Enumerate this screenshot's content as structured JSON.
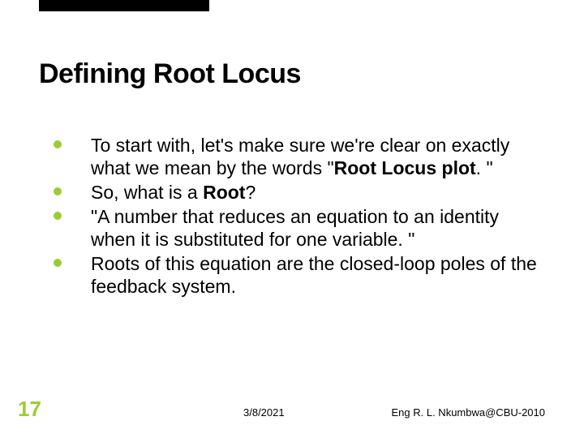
{
  "accent": {
    "bar_color": "#000000",
    "bullet_color": "#9acd32",
    "page_number_color": "#9acd32"
  },
  "background_color": "#ffffff",
  "title": {
    "text": "Defining Root Locus",
    "fontsize": 34,
    "font_weight": "bold",
    "color": "#000000"
  },
  "bullets": [
    {
      "prefix": "To start with, let's make sure we're clear on exactly what we mean by the words \"",
      "bold": "Root Locus plot",
      "suffix": ". \""
    },
    {
      "prefix": "So, what is a ",
      "bold": "Root",
      "suffix": "?"
    },
    {
      "prefix": "\"A number that reduces an equation to an identity when it is substituted for one variable. \"",
      "bold": "",
      "suffix": ""
    },
    {
      "prefix": "Roots of this equation are the closed-loop poles of the feedback system.",
      "bold": "",
      "suffix": ""
    }
  ],
  "bullet_style": {
    "fontsize": 23,
    "color": "#000000",
    "dot_color": "#9acd32"
  },
  "page_number": "17",
  "footer": {
    "date": "3/8/2021",
    "credit": "Eng R. L. Nkumbwa@CBU-2010",
    "fontsize": 13,
    "color": "#000000"
  }
}
